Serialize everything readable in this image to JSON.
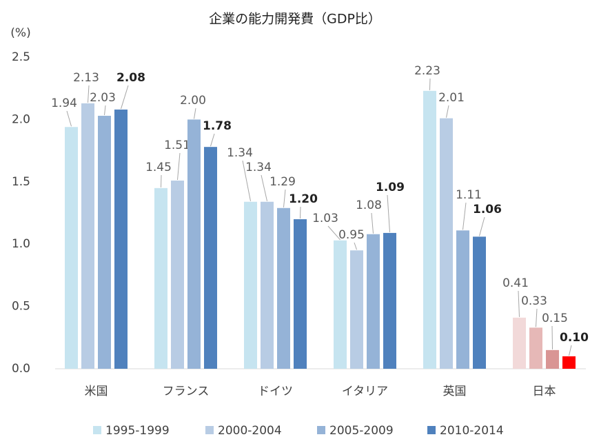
{
  "chart_data": {
    "type": "bar",
    "title": "企業の能力開発費（GDP比）",
    "y_label": "(%)",
    "categories": [
      "米国",
      "フランス",
      "ドイツ",
      "イタリア",
      "英国",
      "日本"
    ],
    "series": [
      {
        "name": "1995-1999",
        "color": "#c6e4f0",
        "colors": [
          "#c6e4f0",
          "#c6e4f0",
          "#c6e4f0",
          "#c6e4f0",
          "#c6e4f0",
          "#f2d9d9"
        ],
        "values": [
          1.94,
          1.45,
          1.34,
          1.03,
          2.23,
          0.41
        ],
        "value_labels": [
          "1.94",
          "1.45",
          "1.34",
          "1.03",
          "2.23",
          "0.41"
        ]
      },
      {
        "name": "2000-2004",
        "color": "#b8cce4",
        "colors": [
          "#b8cce4",
          "#b8cce4",
          "#b8cce4",
          "#b8cce4",
          "#b8cce4",
          "#e6b8b7"
        ],
        "values": [
          2.13,
          1.51,
          1.34,
          0.95,
          2.01,
          0.33
        ],
        "value_labels": [
          "2.13",
          "1.51",
          "1.34",
          "0.95",
          "2.01",
          "0.33"
        ]
      },
      {
        "name": "2005-2009",
        "color": "#95b3d7",
        "colors": [
          "#95b3d7",
          "#95b3d7",
          "#95b3d7",
          "#95b3d7",
          "#95b3d7",
          "#d99594"
        ],
        "values": [
          2.03,
          2.0,
          1.29,
          1.08,
          1.11,
          0.15
        ],
        "value_labels": [
          "2.03",
          "2.00",
          "1.29",
          "1.08",
          "1.11",
          "0.15"
        ]
      },
      {
        "name": "2010-2014",
        "color": "#4f81bd",
        "colors": [
          "#4f81bd",
          "#4f81bd",
          "#4f81bd",
          "#4f81bd",
          "#4f81bd",
          "#ff0000"
        ],
        "values": [
          2.08,
          1.78,
          1.2,
          1.09,
          1.06,
          0.1
        ],
        "value_labels": [
          "2.08",
          "1.78",
          "1.20",
          "1.09",
          "1.06",
          "0.10"
        ]
      }
    ],
    "ylim": [
      0,
      2.5
    ],
    "yticks": [
      {
        "value": 0,
        "label": "0.0"
      },
      0.5,
      {
        "value": 1,
        "label": "1.0"
      },
      1.5,
      {
        "value": 2,
        "label": "2.0"
      },
      2.5
    ],
    "legend": "bottom"
  }
}
